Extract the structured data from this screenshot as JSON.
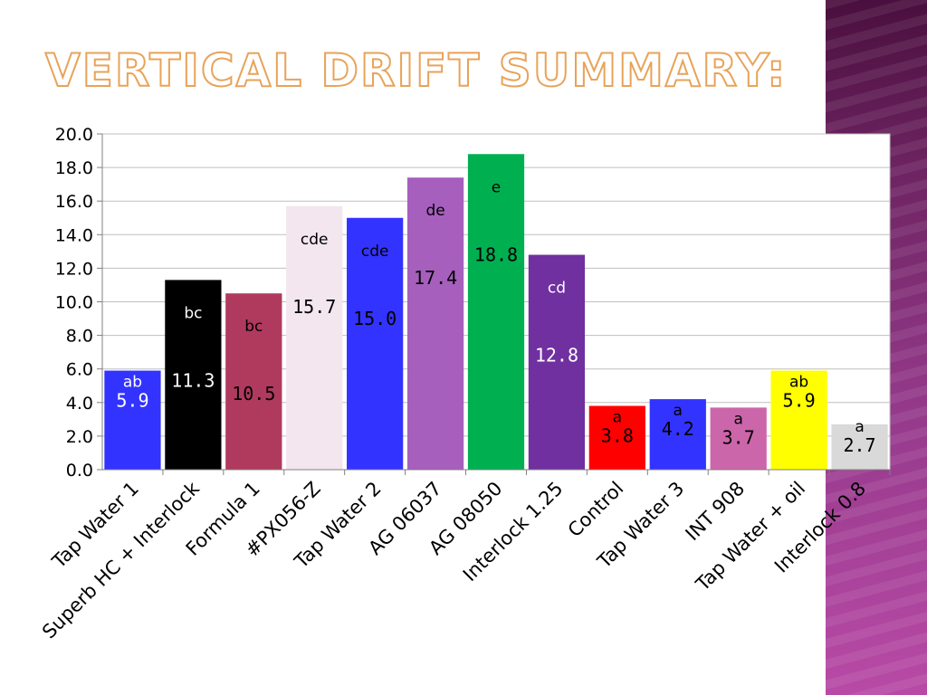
{
  "slide": {
    "title": "Vertical Drift Summary:"
  },
  "colors": {
    "band_top": "#4a0f3e",
    "band_bottom": "#b84aa6",
    "title_outline": "#e8a35a"
  },
  "chart_data": {
    "type": "bar",
    "title": "",
    "xlabel": "",
    "ylabel": "",
    "ylim": [
      0,
      20
    ],
    "yticks": [
      "0.0",
      "2.0",
      "4.0",
      "6.0",
      "8.0",
      "10.0",
      "12.0",
      "14.0",
      "16.0",
      "18.0",
      "20.0"
    ],
    "grid": true,
    "legend": "none",
    "categories": [
      "Tap Water 1",
      "Superb HC + Interlock",
      "Formula 1",
      "#PX056-Z",
      "Tap Water 2",
      "AG 06037",
      "AG 08050",
      "Interlock 1.25",
      "Control",
      "Tap Water 3",
      "INT 908",
      "Tap Water + oil",
      "Interlock 0.8"
    ],
    "values": [
      5.9,
      11.3,
      10.5,
      15.7,
      15.0,
      17.4,
      18.8,
      12.8,
      3.8,
      4.2,
      3.7,
      5.9,
      2.7
    ],
    "value_labels": [
      "5.9",
      "11.3",
      "10.5",
      "15.7",
      "15.0",
      "17.4",
      "18.8",
      "12.8",
      "3.8",
      "4.2",
      "3.7",
      "5.9",
      "2.7"
    ],
    "letters": [
      "ab",
      "bc",
      "bc",
      "cde",
      "cde",
      "de",
      "e",
      "cd",
      "a",
      "a",
      "a",
      "ab",
      "a"
    ],
    "bar_colors": [
      "#3333ff",
      "#000000",
      "#b03a5e",
      "#f3e6ee",
      "#3333ff",
      "#a65fbd",
      "#00b050",
      "#7030a0",
      "#ff0000",
      "#3333ff",
      "#cc66aa",
      "#ffff00",
      "#d9d9d9"
    ],
    "label_colors": [
      "#ffffff",
      "#ffffff",
      "#000000",
      "#000000",
      "#000000",
      "#000000",
      "#000000",
      "#ffffff",
      "#000000",
      "#000000",
      "#000000",
      "#000000",
      "#000000"
    ]
  }
}
